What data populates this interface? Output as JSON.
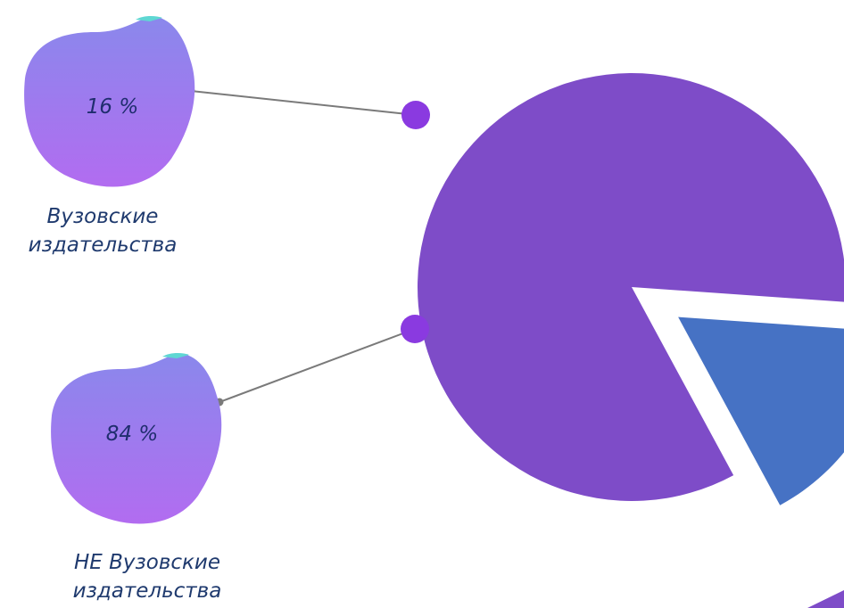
{
  "colors": {
    "slice_university": "#4672c4",
    "slice_non_university": "#7e4cc8",
    "connector_dot": "#8a3ae0",
    "connector_line": "#7a7a7a",
    "blob_top": "#8a88ec",
    "blob_bottom": "#b26cf0",
    "blob_accent": "#5fd7d3",
    "value_text": "#1f2d6e",
    "label_text": "#1f3a6e"
  },
  "chart_data": {
    "type": "pie",
    "title": "",
    "legend": "none",
    "slices": [
      {
        "value": 16,
        "value_label": "16 %",
        "label_lines": [
          "Вузовские",
          "издательства"
        ],
        "color": "#4672c4",
        "exploded": true
      },
      {
        "value": 84,
        "value_label": "84 %",
        "label_lines": [
          "НЕ Вузовские",
          "издательства"
        ],
        "color": "#7e4cc8",
        "exploded": false
      }
    ]
  }
}
